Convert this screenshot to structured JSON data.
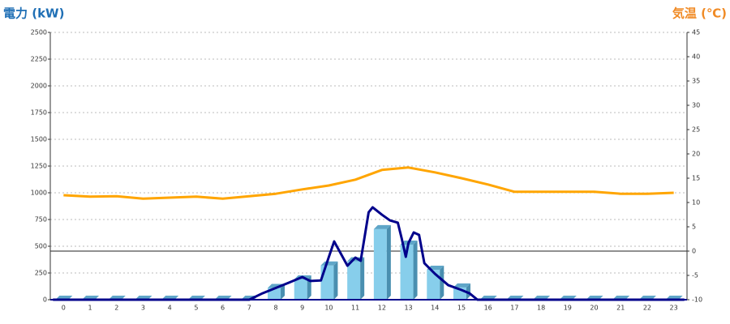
{
  "chart_data": {
    "type": "combo",
    "title": "電力 (kW)",
    "y2_title": "気温 (℃)",
    "categories": [
      "0",
      "1",
      "2",
      "3",
      "4",
      "5",
      "6",
      "7",
      "8",
      "9",
      "10",
      "11",
      "12",
      "13",
      "14",
      "15",
      "16",
      "17",
      "18",
      "19",
      "20",
      "21",
      "22",
      "23"
    ],
    "ylim": [
      0,
      2500
    ],
    "yticks": [
      0,
      250,
      500,
      750,
      1000,
      1250,
      1500,
      1750,
      2000,
      2250,
      2500
    ],
    "y2lim": [
      -10,
      45
    ],
    "y2ticks": [
      -10,
      -5,
      0,
      5,
      10,
      15,
      20,
      25,
      30,
      35,
      40,
      45
    ],
    "grid": true,
    "series": [
      {
        "type": "bar",
        "color": "#87ceeb",
        "values": [
          0,
          0,
          0,
          0,
          0,
          0,
          0,
          0,
          110,
          190,
          320,
          360,
          660,
          515,
          280,
          115,
          0,
          0,
          0,
          0,
          0,
          0,
          0,
          0
        ]
      },
      {
        "type": "line",
        "color": "#00008b",
        "x": [
          -0.4,
          7.0,
          7.5,
          8.0,
          8.5,
          9.0,
          9.3,
          9.7,
          10.0,
          10.2,
          10.7,
          11.0,
          11.2,
          11.5,
          11.65,
          12.0,
          12.3,
          12.6,
          12.75,
          12.9,
          13.0,
          13.2,
          13.4,
          13.6,
          14.0,
          14.5,
          15.0,
          15.3,
          15.6,
          23.4
        ],
        "values": [
          0,
          0,
          60,
          110,
          160,
          212,
          175,
          180,
          400,
          545,
          318,
          394,
          364,
          818,
          864,
          795,
          742,
          720,
          568,
          401,
          530,
          629,
          606,
          341,
          242,
          136,
          91,
          60,
          0,
          0
        ]
      },
      {
        "type": "line",
        "axis": "y2",
        "color": "#ffa500",
        "values": [
          11.5,
          11.2,
          11.3,
          10.8,
          11,
          11.2,
          10.8,
          11.3,
          11.8,
          12.7,
          13.5,
          14.7,
          16.7,
          17.2,
          16.2,
          15,
          13.7,
          12.2,
          12.2,
          12.2,
          12.2,
          11.8,
          11.8,
          12
        ]
      }
    ]
  }
}
